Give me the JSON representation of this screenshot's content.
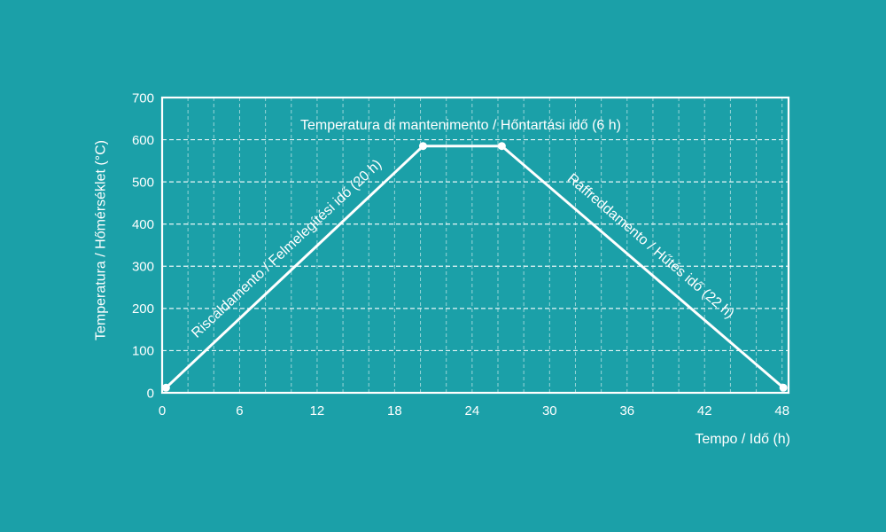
{
  "colors": {
    "background": "#1ba0a8",
    "foreground": "#ffffff"
  },
  "chart_data": {
    "type": "line",
    "x": [
      0.3,
      20.2,
      26.3,
      48.1
    ],
    "series": [
      {
        "values": [
          12,
          585,
          585,
          12
        ]
      }
    ],
    "xlabel": "Tempo / Idő (h)",
    "ylabel": "Temperatura / Hőmérséklet (°C)",
    "xlim": [
      0,
      48.5
    ],
    "ylim": [
      0,
      700
    ],
    "xticks": [
      0,
      6,
      12,
      18,
      24,
      30,
      36,
      42,
      48
    ],
    "yticks": [
      0,
      100,
      200,
      300,
      400,
      500,
      600,
      700
    ],
    "grid": {
      "x_interval": 2,
      "y_interval": 100,
      "style": "dashed"
    },
    "markers": "circle",
    "annotations": [
      "Temperatura di mantenimento / Hőntartási idő (6 h)",
      "Riscaldamento / Felmelegítési idő (20 h)",
      "Raffreddamento / Hűtés idő (22 h)"
    ]
  }
}
